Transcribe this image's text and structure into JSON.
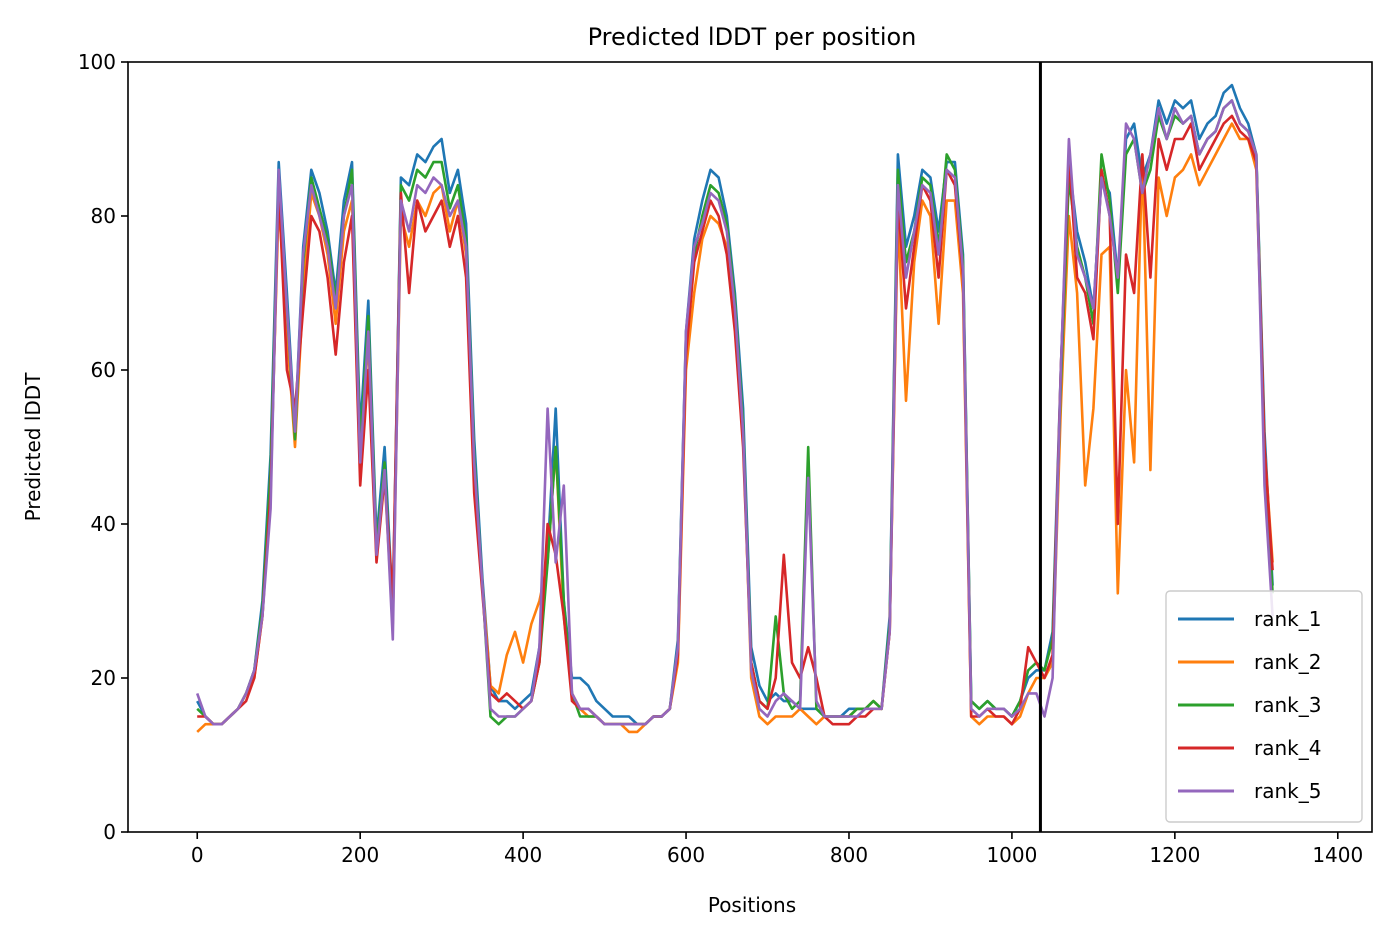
{
  "chart_data": {
    "type": "line",
    "title": "Predicted lDDT per position",
    "xlabel": "Positions",
    "ylabel": "Predicted lDDT",
    "xlim": [
      -85,
      1442
    ],
    "ylim": [
      0,
      100
    ],
    "xticks": [
      0,
      200,
      400,
      600,
      800,
      1000,
      1200,
      1400
    ],
    "yticks": [
      0,
      20,
      40,
      60,
      80,
      100
    ],
    "grid": false,
    "legend_position": "lower-right",
    "vline": {
      "x": 1035,
      "color": "#000000"
    },
    "x_step": 10,
    "series": [
      {
        "name": "rank_1",
        "color": "#1f77b4",
        "values": [
          17,
          15,
          14,
          14,
          15,
          16,
          18,
          21,
          30,
          49,
          87,
          70,
          52,
          76,
          86,
          83,
          78,
          70,
          82,
          87,
          52,
          69,
          38,
          50,
          29,
          85,
          84,
          88,
          87,
          89,
          90,
          83,
          86,
          79,
          51,
          33,
          19,
          17,
          17,
          16,
          17,
          18,
          24,
          36,
          55,
          30,
          20,
          20,
          19,
          17,
          16,
          15,
          15,
          15,
          14,
          14,
          15,
          15,
          16,
          25,
          65,
          77,
          82,
          86,
          85,
          80,
          70,
          55,
          24,
          19,
          17,
          18,
          17,
          17,
          16,
          16,
          16,
          15,
          15,
          15,
          16,
          16,
          16,
          17,
          16,
          28,
          88,
          76,
          80,
          86,
          85,
          78,
          87,
          87,
          75,
          17,
          16,
          17,
          16,
          16,
          15,
          17,
          20,
          21,
          21,
          26,
          60,
          87,
          78,
          74,
          68,
          85,
          83,
          72,
          90,
          92,
          85,
          88,
          95,
          92,
          95,
          94,
          95,
          90,
          92,
          93,
          96,
          97,
          94,
          92,
          88,
          52,
          32
        ]
      },
      {
        "name": "rank_2",
        "color": "#ff7f0e",
        "values": [
          13,
          14,
          14,
          14,
          15,
          16,
          18,
          20,
          28,
          45,
          82,
          65,
          50,
          70,
          83,
          80,
          75,
          66,
          78,
          82,
          48,
          64,
          36,
          46,
          27,
          80,
          76,
          82,
          80,
          83,
          84,
          78,
          82,
          75,
          46,
          32,
          19,
          18,
          23,
          26,
          22,
          27,
          30,
          35,
          50,
          28,
          18,
          16,
          15,
          15,
          14,
          14,
          14,
          13,
          13,
          14,
          15,
          15,
          16,
          22,
          60,
          70,
          77,
          80,
          79,
          76,
          68,
          52,
          20,
          15,
          14,
          15,
          15,
          15,
          16,
          15,
          14,
          15,
          15,
          15,
          15,
          16,
          16,
          17,
          16,
          26,
          80,
          56,
          74,
          82,
          80,
          66,
          82,
          82,
          70,
          15,
          14,
          15,
          15,
          15,
          14,
          15,
          18,
          20,
          20,
          22,
          55,
          80,
          70,
          45,
          55,
          75,
          76,
          31,
          60,
          48,
          88,
          47,
          85,
          80,
          85,
          86,
          88,
          84,
          86,
          88,
          90,
          92,
          90,
          90,
          86,
          50,
          35
        ]
      },
      {
        "name": "rank_3",
        "color": "#2ca02c",
        "values": [
          16,
          15,
          14,
          14,
          15,
          16,
          18,
          21,
          29,
          47,
          85,
          68,
          51,
          74,
          85,
          81,
          77,
          69,
          80,
          86,
          50,
          67,
          37,
          48,
          28,
          84,
          82,
          86,
          85,
          87,
          87,
          81,
          84,
          77,
          49,
          32,
          15,
          14,
          15,
          15,
          16,
          17,
          22,
          35,
          50,
          30,
          18,
          15,
          15,
          15,
          14,
          14,
          14,
          14,
          14,
          14,
          15,
          15,
          16,
          24,
          64,
          75,
          80,
          84,
          83,
          79,
          69,
          53,
          22,
          17,
          16,
          28,
          18,
          16,
          17,
          50,
          16,
          15,
          15,
          15,
          15,
          16,
          16,
          17,
          16,
          27,
          86,
          74,
          78,
          85,
          84,
          76,
          88,
          86,
          74,
          17,
          16,
          17,
          16,
          16,
          15,
          17,
          21,
          22,
          21,
          25,
          58,
          85,
          76,
          72,
          66,
          88,
          82,
          70,
          88,
          90,
          83,
          86,
          93,
          90,
          93,
          92,
          93,
          88,
          90,
          91,
          94,
          95,
          92,
          91,
          88,
          50,
          31
        ]
      },
      {
        "name": "rank_4",
        "color": "#d62728",
        "values": [
          15,
          15,
          14,
          14,
          15,
          16,
          17,
          20,
          28,
          44,
          84,
          60,
          55,
          68,
          80,
          78,
          72,
          62,
          74,
          80,
          45,
          60,
          35,
          46,
          30,
          83,
          70,
          82,
          78,
          80,
          82,
          76,
          80,
          72,
          44,
          31,
          18,
          17,
          18,
          17,
          16,
          17,
          22,
          40,
          36,
          28,
          17,
          16,
          16,
          15,
          14,
          14,
          14,
          14,
          14,
          14,
          15,
          15,
          16,
          23,
          62,
          74,
          78,
          82,
          80,
          75,
          65,
          50,
          22,
          17,
          16,
          20,
          36,
          22,
          20,
          24,
          20,
          15,
          14,
          14,
          14,
          15,
          15,
          16,
          16,
          26,
          82,
          68,
          76,
          84,
          82,
          72,
          86,
          84,
          72,
          15,
          15,
          16,
          15,
          15,
          14,
          16,
          24,
          22,
          20,
          23,
          60,
          88,
          72,
          70,
          64,
          86,
          80,
          40,
          75,
          70,
          88,
          72,
          90,
          86,
          90,
          90,
          92,
          86,
          88,
          90,
          92,
          93,
          91,
          90,
          87,
          50,
          34
        ]
      },
      {
        "name": "rank_5",
        "color": "#9467bd",
        "values": [
          18,
          15,
          14,
          14,
          15,
          16,
          18,
          21,
          28,
          42,
          86,
          68,
          52,
          75,
          84,
          80,
          76,
          68,
          80,
          84,
          48,
          65,
          36,
          47,
          25,
          82,
          78,
          84,
          83,
          85,
          84,
          80,
          82,
          76,
          48,
          32,
          16,
          15,
          15,
          15,
          16,
          17,
          24,
          55,
          35,
          45,
          18,
          16,
          16,
          15,
          14,
          14,
          14,
          14,
          14,
          14,
          15,
          15,
          16,
          24,
          65,
          76,
          79,
          83,
          82,
          78,
          68,
          52,
          21,
          16,
          15,
          17,
          18,
          17,
          16,
          46,
          17,
          15,
          15,
          15,
          15,
          15,
          16,
          16,
          16,
          26,
          84,
          72,
          78,
          84,
          83,
          75,
          86,
          85,
          73,
          16,
          15,
          16,
          16,
          16,
          15,
          16,
          18,
          18,
          15,
          20,
          60,
          90,
          75,
          72,
          68,
          85,
          80,
          72,
          92,
          90,
          83,
          88,
          94,
          90,
          94,
          92,
          93,
          88,
          90,
          91,
          94,
          95,
          92,
          91,
          88,
          45,
          28
        ]
      }
    ]
  }
}
